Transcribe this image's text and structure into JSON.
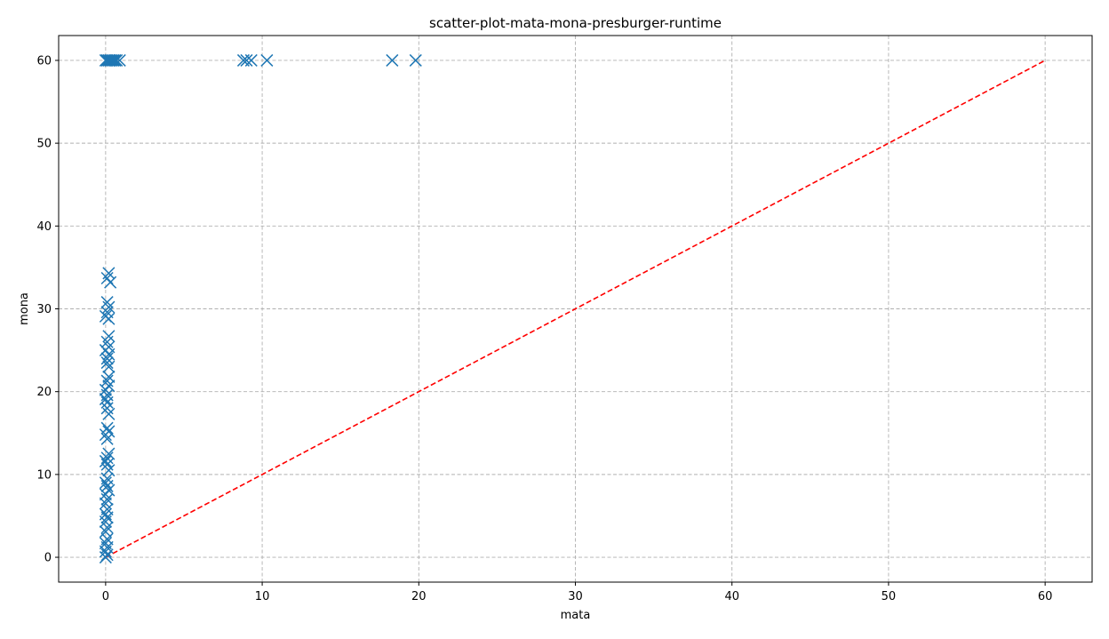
{
  "chart_data": {
    "type": "scatter",
    "title": "scatter-plot-mata-mona-presburger-runtime",
    "xlabel": "mata",
    "ylabel": "mona",
    "xlim": [
      -3,
      63
    ],
    "ylim": [
      -3,
      63
    ],
    "xticks": [
      0,
      10,
      20,
      30,
      40,
      50,
      60
    ],
    "yticks": [
      0,
      10,
      20,
      30,
      40,
      50,
      60
    ],
    "grid": true,
    "marker": "x",
    "colors": {
      "points": "#1f77b4",
      "reference_line": "#ff0000",
      "grid": "#b0b0b0"
    },
    "reference_line": {
      "x": [
        0,
        60
      ],
      "y": [
        0,
        60
      ],
      "style": "dashed"
    },
    "points": [
      [
        0.0,
        60
      ],
      [
        0.1,
        60
      ],
      [
        0.2,
        60
      ],
      [
        0.3,
        60
      ],
      [
        0.4,
        60
      ],
      [
        0.5,
        60
      ],
      [
        0.6,
        60
      ],
      [
        0.7,
        60
      ],
      [
        0.9,
        60
      ],
      [
        8.8,
        60
      ],
      [
        9.0,
        60
      ],
      [
        9.3,
        60
      ],
      [
        10.3,
        60
      ],
      [
        18.3,
        60
      ],
      [
        19.8,
        60
      ],
      [
        0.2,
        34.3
      ],
      [
        0.1,
        33.7
      ],
      [
        0.3,
        33.2
      ],
      [
        0.1,
        30.8
      ],
      [
        0.2,
        30.2
      ],
      [
        0.1,
        29.6
      ],
      [
        0.0,
        29.1
      ],
      [
        0.2,
        28.8
      ],
      [
        0.2,
        26.7
      ],
      [
        0.1,
        26.0
      ],
      [
        0.2,
        25.4
      ],
      [
        0.0,
        25.0
      ],
      [
        0.2,
        24.5
      ],
      [
        0.1,
        24.0
      ],
      [
        0.1,
        23.5
      ],
      [
        0.2,
        23.0
      ],
      [
        0.2,
        21.8
      ],
      [
        0.1,
        21.3
      ],
      [
        0.2,
        20.7
      ],
      [
        0.0,
        20.2
      ],
      [
        0.1,
        19.6
      ],
      [
        0.0,
        19.1
      ],
      [
        0.1,
        18.7
      ],
      [
        0.1,
        18.0
      ],
      [
        0.2,
        17.3
      ],
      [
        0.1,
        15.6
      ],
      [
        0.2,
        15.2
      ],
      [
        0.0,
        14.8
      ],
      [
        0.1,
        14.3
      ],
      [
        0.2,
        12.5
      ],
      [
        0.1,
        12.0
      ],
      [
        0.0,
        11.6
      ],
      [
        0.1,
        11.2
      ],
      [
        0.2,
        10.5
      ],
      [
        0.1,
        9.5
      ],
      [
        0.0,
        9.0
      ],
      [
        0.1,
        8.6
      ],
      [
        0.2,
        8.1
      ],
      [
        0.0,
        7.6
      ],
      [
        0.1,
        7.0
      ],
      [
        0.0,
        6.5
      ],
      [
        0.1,
        5.8
      ],
      [
        0.0,
        5.2
      ],
      [
        0.1,
        4.8
      ],
      [
        0.0,
        4.3
      ],
      [
        0.1,
        3.6
      ],
      [
        0.0,
        3.1
      ],
      [
        0.1,
        2.2
      ],
      [
        0.0,
        1.7
      ],
      [
        0.1,
        1.2
      ],
      [
        0.0,
        0.7
      ],
      [
        0.1,
        0.3
      ],
      [
        0.0,
        0.0
      ]
    ]
  }
}
